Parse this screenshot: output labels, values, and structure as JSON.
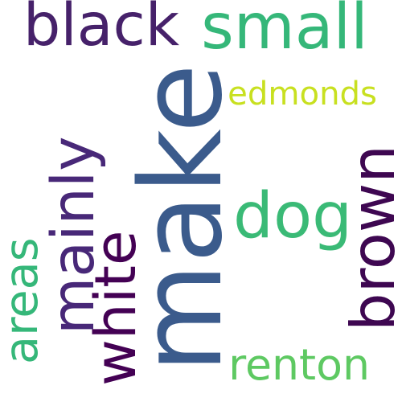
{
  "words": [
    {
      "text": "make",
      "color": "#3b5b8c",
      "orientation": "vertical"
    },
    {
      "text": "black",
      "color": "#46216a",
      "orientation": "horizontal"
    },
    {
      "text": "small",
      "color": "#35b779",
      "orientation": "horizontal"
    },
    {
      "text": "edmonds",
      "color": "#c8e020",
      "orientation": "horizontal"
    },
    {
      "text": "dog",
      "color": "#3aba76",
      "orientation": "horizontal"
    },
    {
      "text": "brown",
      "color": "#3e0751",
      "orientation": "vertical"
    },
    {
      "text": "mainly",
      "color": "#482878",
      "orientation": "vertical"
    },
    {
      "text": "areas",
      "color": "#35b779",
      "orientation": "vertical"
    },
    {
      "text": "white",
      "color": "#440154",
      "orientation": "vertical"
    },
    {
      "text": "renton",
      "color": "#5ec962",
      "orientation": "horizontal"
    }
  ]
}
